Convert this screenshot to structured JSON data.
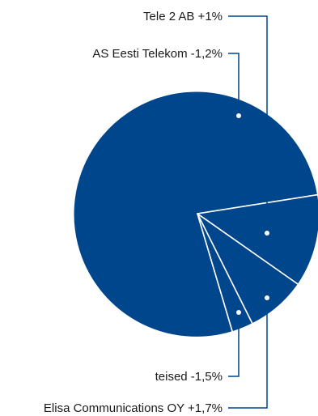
{
  "chart_data": {
    "type": "pie",
    "title": "",
    "colors": {
      "slice": "#00468c",
      "separator": "#ffffff",
      "leader": "#00468c",
      "text": "#1a1a1a"
    },
    "slices": [
      {
        "label": "AS Eesti Telekom -1,2%"
      },
      {
        "label": "Tele 2 AB +1%"
      },
      {
        "label": "Elisa Communications OY +1,7%"
      },
      {
        "label": "teised -1,5%"
      }
    ]
  }
}
